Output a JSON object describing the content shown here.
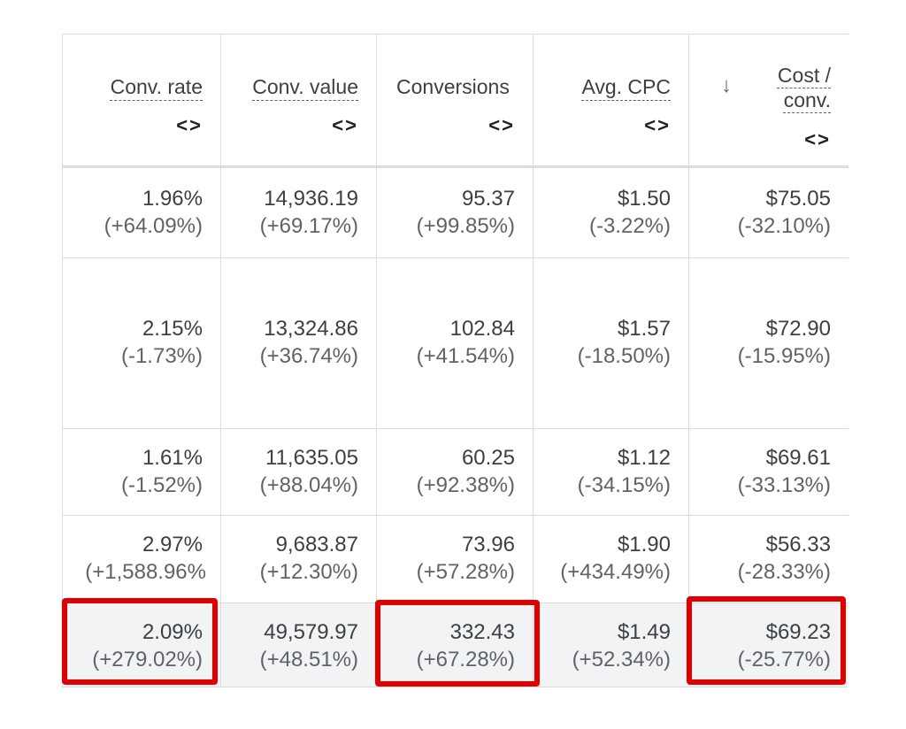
{
  "columns": [
    {
      "title": "Conv. rate",
      "toggle_icon": "expand-collapse-icon"
    },
    {
      "title": "Conv. value",
      "toggle_icon": "expand-collapse-icon"
    },
    {
      "title": "Conversions",
      "toggle_icon": "expand-collapse-icon"
    },
    {
      "title": "Avg. CPC",
      "toggle_icon": "expand-collapse-icon"
    },
    {
      "title_line1": "Cost /",
      "title_line2": "conv.",
      "sort_icon": "sort-down-arrow-icon",
      "toggle_icon": "expand-collapse-icon"
    }
  ],
  "toggle_glyph": "<>",
  "sort_glyph": "↓",
  "rows": [
    {
      "cells": [
        {
          "main": "1.96%",
          "delta": "(+64.09%)"
        },
        {
          "main": "14,936.19",
          "delta": "(+69.17%)"
        },
        {
          "main": "95.37",
          "delta": "(+99.85%)"
        },
        {
          "main": "$1.50",
          "delta": "(-3.22%)"
        },
        {
          "main": "$75.05",
          "delta": "(-32.10%)"
        }
      ]
    },
    {
      "cells": [
        {
          "main": "2.15%",
          "delta": "(-1.73%)"
        },
        {
          "main": "13,324.86",
          "delta": "(+36.74%)"
        },
        {
          "main": "102.84",
          "delta": "(+41.54%)"
        },
        {
          "main": "$1.57",
          "delta": "(-18.50%)"
        },
        {
          "main": "$72.90",
          "delta": "(-15.95%)"
        }
      ]
    },
    {
      "cells": [
        {
          "main": "1.61%",
          "delta": "(-1.52%)"
        },
        {
          "main": "11,635.05",
          "delta": "(+88.04%)"
        },
        {
          "main": "60.25",
          "delta": "(+92.38%)"
        },
        {
          "main": "$1.12",
          "delta": "(-34.15%)"
        },
        {
          "main": "$69.61",
          "delta": "(-33.13%)"
        }
      ]
    },
    {
      "cells": [
        {
          "main": "2.97%",
          "delta": "(+1,588.96%"
        },
        {
          "main": "9,683.87",
          "delta": "(+12.30%)"
        },
        {
          "main": "73.96",
          "delta": "(+57.28%)"
        },
        {
          "main": "$1.90",
          "delta": "(+434.49%)"
        },
        {
          "main": "$56.33",
          "delta": "(-28.33%)"
        }
      ]
    }
  ],
  "total": {
    "cells": [
      {
        "main": "2.09%",
        "delta": "(+279.02%)"
      },
      {
        "main": "49,579.97",
        "delta": "(+48.51%)"
      },
      {
        "main": "332.43",
        "delta": "(+67.28%)"
      },
      {
        "main": "$1.49",
        "delta": "(+52.34%)"
      },
      {
        "main": "$69.23",
        "delta": "(-25.77%)"
      }
    ]
  },
  "highlight_color": "#e00000"
}
